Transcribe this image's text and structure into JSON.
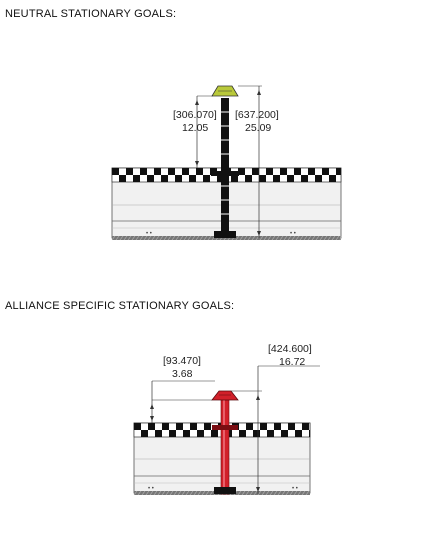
{
  "sections": [
    {
      "title": "NEUTRAL STATIONARY GOALS:",
      "goal_color": "#b9c93a",
      "dimensions": [
        {
          "mm": "306.070",
          "in": "12.05"
        },
        {
          "mm": "637.200",
          "in": "25.09"
        }
      ]
    },
    {
      "title": "ALLIANCE SPECIFIC STATIONARY GOALS:",
      "goal_color": "#d1202a",
      "dimensions": [
        {
          "mm": "93.470",
          "in": "3.68"
        },
        {
          "mm": "424.600",
          "in": "16.72"
        }
      ]
    }
  ]
}
